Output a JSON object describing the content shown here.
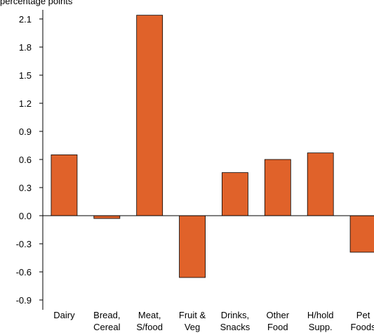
{
  "caption": "percentage points",
  "chart_data": {
    "type": "bar",
    "categories": [
      [
        "Dairy"
      ],
      [
        "Bread,",
        "Cereal"
      ],
      [
        "Meat,",
        "S/food"
      ],
      [
        "Fruit &",
        "Veg"
      ],
      [
        "Drinks,",
        "Snacks"
      ],
      [
        "Other",
        "Food"
      ],
      [
        "H/hold",
        "Supp."
      ],
      [
        "Pet",
        "Foods"
      ]
    ],
    "values": [
      0.65,
      -0.03,
      2.14,
      -0.66,
      0.46,
      0.6,
      0.67,
      -0.39
    ],
    "yticks": [
      "2.1",
      "1.8",
      "1.5",
      "1.2",
      "0.9",
      "0.6",
      "0.3",
      "0.0",
      "-0.3",
      "-0.6",
      "-0.9"
    ],
    "ylim": [
      -0.9,
      2.1
    ],
    "bar_color": "#E0622A",
    "bar_edge_color": "#000000",
    "legend": false,
    "grid": false
  }
}
